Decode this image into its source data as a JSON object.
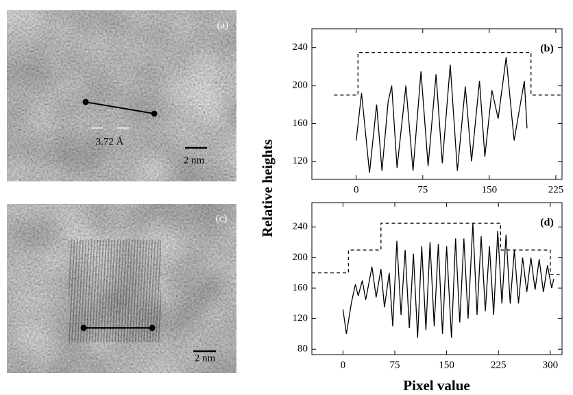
{
  "images": [
    {
      "label": "(a)",
      "spacing_label": "3.72 Å",
      "scale_label": "2 nm"
    },
    {
      "label": "(c)",
      "scale_label": "2 nm"
    }
  ],
  "chart_data": [
    {
      "type": "line",
      "panel_label": "(b)",
      "ylabel": "Relative heights",
      "xlim": [
        -50,
        232
      ],
      "ylim": [
        101,
        260
      ],
      "xticks": [
        0,
        75,
        150,
        225
      ],
      "yticks": [
        120,
        160,
        200,
        240
      ],
      "series": [
        {
          "color": "#000000",
          "dash": false,
          "x": [
            0,
            6,
            15,
            23,
            29,
            36,
            40,
            46,
            56,
            64,
            73,
            81,
            90,
            97,
            106,
            114,
            123,
            130,
            139,
            145,
            153,
            160,
            169,
            178,
            189.5,
            192.5
          ],
          "values": [
            142,
            192,
            108,
            180,
            110,
            183,
            200,
            113,
            200,
            110,
            215,
            115,
            212,
            118,
            222,
            110,
            199,
            120,
            205,
            125,
            195,
            165,
            230,
            142,
            205,
            155
          ]
        },
        {
          "color": "#000000",
          "dash": true,
          "x": [
            -25,
            2,
            2,
            197,
            197,
            232
          ],
          "values": [
            190,
            190,
            235,
            235,
            190,
            190
          ]
        }
      ]
    },
    {
      "type": "line",
      "panel_label": "(d)",
      "xlabel": "Pixel value",
      "xlim": [
        -45,
        317
      ],
      "ylim": [
        73,
        272
      ],
      "xticks": [
        0,
        75,
        150,
        225,
        300
      ],
      "yticks": [
        80,
        120,
        160,
        200,
        240
      ],
      "series": [
        {
          "color": "#000000",
          "dash": false,
          "x": [
            0,
            5,
            12,
            18,
            22,
            28,
            33,
            42,
            48,
            55,
            60,
            67,
            72,
            78,
            84,
            90,
            96,
            102,
            108,
            114,
            120,
            126,
            132,
            138,
            144,
            150,
            157,
            163,
            169,
            175,
            181,
            188,
            194,
            200,
            206,
            212,
            218,
            224,
            230,
            236,
            242,
            248,
            254,
            260,
            266,
            272,
            278,
            284,
            290,
            296,
            302,
            305
          ],
          "values": [
            132,
            100,
            140,
            165,
            150,
            170,
            145,
            188,
            148,
            185,
            135,
            180,
            110,
            222,
            125,
            210,
            108,
            205,
            95,
            215,
            105,
            220,
            110,
            218,
            100,
            215,
            95,
            225,
            115,
            225,
            120,
            245,
            125,
            228,
            130,
            215,
            125,
            235,
            140,
            230,
            140,
            210,
            140,
            200,
            155,
            200,
            158,
            198,
            155,
            190,
            160,
            172
          ]
        },
        {
          "color": "#000000",
          "dash": true,
          "x": [
            -45,
            8,
            8,
            55,
            55,
            228,
            228,
            300,
            300,
            317
          ],
          "values": [
            180,
            180,
            210,
            210,
            245,
            245,
            210,
            210,
            178,
            178
          ]
        }
      ]
    }
  ]
}
